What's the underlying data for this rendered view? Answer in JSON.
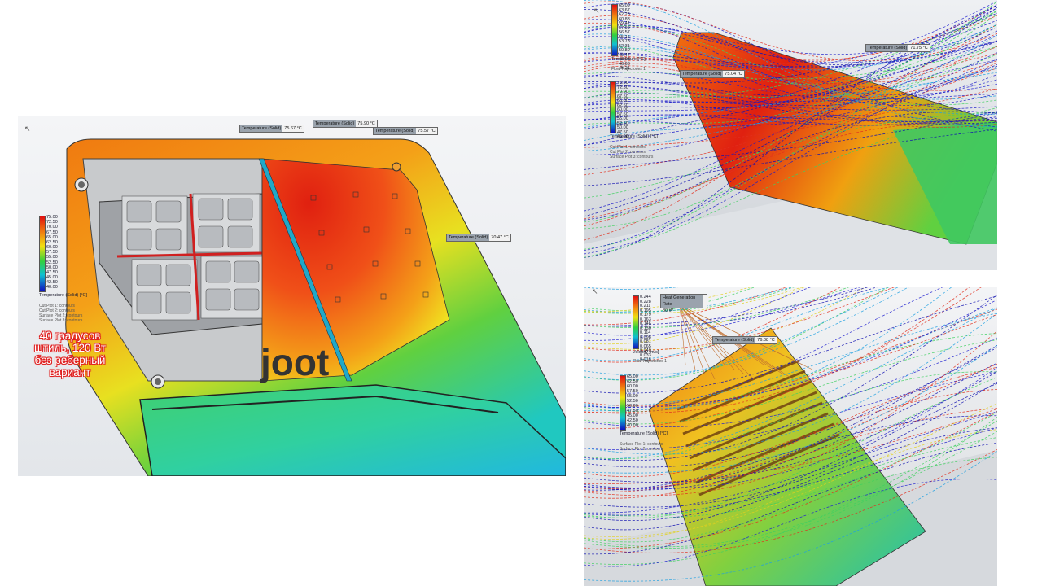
{
  "main": {
    "legend": {
      "ticks": [
        "75.00",
        "72.50",
        "70.00",
        "67.50",
        "65.00",
        "62.50",
        "60.00",
        "57.50",
        "55.00",
        "52.50",
        "50.00",
        "47.50",
        "45.00",
        "42.50",
        "40.00"
      ],
      "unit": "Temperature (Solid) [°C]",
      "plots": [
        "Cut Plot 1: contours",
        "Cut Plot 2: contours",
        "Surface Plot 2: contours",
        "Surface Plot 3: contours"
      ]
    },
    "probes": [
      {
        "tag": "Temperature (Solid)",
        "value": "75.67 °C"
      },
      {
        "tag": "Temperature (Solid)",
        "value": "75.90 °C"
      },
      {
        "tag": "Temperature (Solid)",
        "value": "75.57 °C"
      },
      {
        "tag": "Temperature (Solid)",
        "value": "70.47 °C"
      }
    ],
    "logo_text": "joot",
    "caption": "40 градусов штиль, 120 Вт без реберный вариант"
  },
  "top_right": {
    "legend1": {
      "ticks": [
        "65.09",
        "63.67",
        "62.25",
        "60.83",
        "59.41",
        "57.99",
        "56.57",
        "55.15",
        "53.73",
        "52.31",
        "50.89",
        "49.47",
        "48.05",
        "46.63",
        "45.21"
      ],
      "unit": "Temperature [°C]"
    },
    "flow_label": "Flow Trajectories 1",
    "legend2": {
      "ticks": [
        "75.00",
        "72.50",
        "70.00",
        "67.50",
        "65.00",
        "62.50",
        "60.00",
        "57.50",
        "55.00",
        "52.50",
        "50.00",
        "47.50",
        "45.00"
      ],
      "unit": "Temperature (Solid) [°C]",
      "plots": [
        "Cut Plot 1: contours",
        "Cut Plot 2: contours",
        "Surface Plot 3: contours"
      ]
    },
    "probes": [
      {
        "tag": "Temperature (Solid)",
        "value": "75.04 °C"
      },
      {
        "tag": "Temperature (Solid)",
        "value": "71.75 °C"
      }
    ]
  },
  "bottom_right": {
    "legend1": {
      "ticks": [
        "0.244",
        "0.228",
        "0.211",
        "0.195",
        "0.179",
        "0.163",
        "0.146",
        "0.130",
        "0.114",
        "0.098",
        "0.081",
        "0.065",
        "0.049",
        "0.033",
        "0.016"
      ],
      "unit": "Velocity [m/s]"
    },
    "flow_label": "Flow Trajectories 1",
    "legend2": {
      "ticks": [
        "65.00",
        "62.50",
        "60.00",
        "57.50",
        "55.00",
        "52.50",
        "50.00",
        "47.50",
        "45.00",
        "42.50",
        "40.00"
      ],
      "unit": "Temperature (Solid) [°C]",
      "plots": [
        "Surface Plot 1: contours",
        "Surface Plot 2: contours"
      ]
    },
    "heat_tag": "Heat Generation Rate",
    "heat_value": "80 W",
    "probe": {
      "tag": "Temperature (Solid)",
      "value": "76.08 °C"
    }
  }
}
